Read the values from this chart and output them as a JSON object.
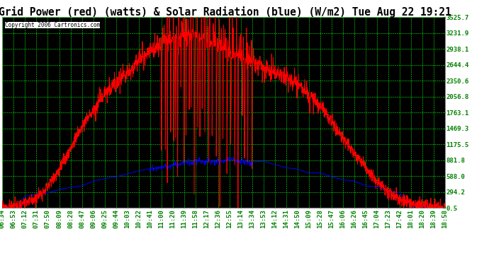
{
  "title": "Grid Power (red) (watts) & Solar Radiation (blue) (W/m2) Tue Aug 22 19:21",
  "copyright": "Copyright 2006 Cartronics.com",
  "yticks": [
    0.5,
    294.2,
    588.0,
    881.8,
    1175.5,
    1469.3,
    1763.1,
    2056.8,
    2350.6,
    2644.4,
    2938.1,
    3231.9,
    3525.7
  ],
  "xtick_labels": [
    "06:34",
    "06:53",
    "07:12",
    "07:31",
    "07:50",
    "08:09",
    "08:28",
    "08:47",
    "09:06",
    "09:25",
    "09:44",
    "10:03",
    "10:22",
    "10:41",
    "11:00",
    "11:20",
    "11:39",
    "11:58",
    "12:17",
    "12:36",
    "12:55",
    "13:14",
    "13:34",
    "13:53",
    "14:12",
    "14:31",
    "14:50",
    "15:09",
    "15:28",
    "15:47",
    "16:06",
    "16:26",
    "16:45",
    "17:04",
    "17:23",
    "17:42",
    "18:01",
    "18:20",
    "18:39",
    "18:58"
  ],
  "ymin": 0.5,
  "ymax": 3525.7,
  "grid_color": "#00ff00",
  "bg_color": "#000000",
  "fig_bg": "#ffffff",
  "red_color": "#ff0000",
  "blue_color": "#0000ff",
  "title_fontsize": 10.5,
  "tick_fontsize": 6.5,
  "copyright_fontsize": 5.5
}
